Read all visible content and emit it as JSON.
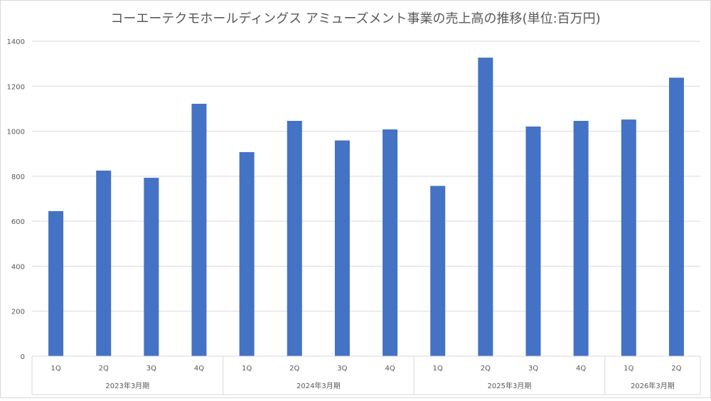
{
  "chart_data": {
    "type": "bar",
    "title": "コーエーテクモホールディングス アミューズメント事業の売上高の推移(単位:百万円)",
    "xlabel": "",
    "ylabel": "",
    "ylim": [
      0,
      1400
    ],
    "yticks": [
      0,
      200,
      400,
      600,
      800,
      1000,
      1200,
      1400
    ],
    "grid": true,
    "legend": "none",
    "bar_color": "#4472C4",
    "groups": [
      {
        "label": "2023年3月期",
        "categories": [
          "1Q",
          "2Q",
          "3Q",
          "4Q"
        ],
        "values": [
          645,
          825,
          793,
          1122
        ]
      },
      {
        "label": "2024年3月期",
        "categories": [
          "1Q",
          "2Q",
          "3Q",
          "4Q"
        ],
        "values": [
          907,
          1046,
          959,
          1008
        ]
      },
      {
        "label": "2025年3月期",
        "categories": [
          "1Q",
          "2Q",
          "3Q",
          "4Q"
        ],
        "values": [
          757,
          1327,
          1021,
          1046
        ]
      },
      {
        "label": "2026年3月期",
        "categories": [
          "1Q",
          "2Q"
        ],
        "values": [
          1052,
          1238
        ]
      }
    ]
  }
}
